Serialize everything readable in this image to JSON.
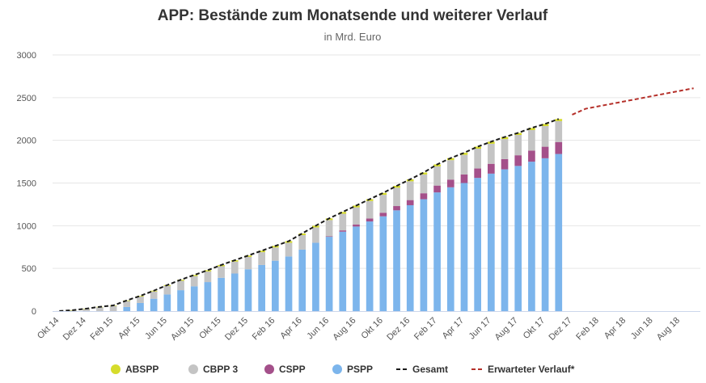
{
  "chart_data": {
    "type": "bar",
    "title": "APP: Bestände zum Monatsende und weiterer Verlauf",
    "subtitle": "in Mrd. Euro",
    "ylim": [
      0,
      3000
    ],
    "yticks": [
      "0",
      "500",
      "1000",
      "1500",
      "2000",
      "2500",
      "3000"
    ],
    "ytick_values": [
      0,
      500,
      1000,
      1500,
      2000,
      2500,
      3000
    ],
    "categories": [
      "Okt 14",
      "Nov 14",
      "Dez 14",
      "Jan 15",
      "Feb 15",
      "Mär 15",
      "Apr 15",
      "Mai 15",
      "Jun 15",
      "Jul 15",
      "Aug 15",
      "Sep 15",
      "Okt 15",
      "Nov 15",
      "Dez 15",
      "Jan 16",
      "Feb 16",
      "Mär 16",
      "Apr 16",
      "Mai 16",
      "Jun 16",
      "Jul 16",
      "Aug 16",
      "Sep 16",
      "Okt 16",
      "Nov 16",
      "Dez 16",
      "Jan 17",
      "Feb 17",
      "Mär 17",
      "Apr 17",
      "Mai 17",
      "Jun 17",
      "Jul 17",
      "Aug 17",
      "Sep 17",
      "Okt 17",
      "Nov 17",
      "Dez 17",
      "Jan 18",
      "Feb 18",
      "Mär 18",
      "Apr 18",
      "Mai 18",
      "Jun 18",
      "Jul 18",
      "Aug 18",
      "Sep 18"
    ],
    "x_tick_labels": [
      {
        "index": 0,
        "label": "Okt 14"
      },
      {
        "index": 2,
        "label": "Dez 14"
      },
      {
        "index": 4,
        "label": "Feb 15"
      },
      {
        "index": 6,
        "label": "Apr 15"
      },
      {
        "index": 8,
        "label": "Jun 15"
      },
      {
        "index": 10,
        "label": "Aug 15"
      },
      {
        "index": 12,
        "label": "Okt 15"
      },
      {
        "index": 14,
        "label": "Dez 15"
      },
      {
        "index": 16,
        "label": "Feb 16"
      },
      {
        "index": 18,
        "label": "Apr 16"
      },
      {
        "index": 20,
        "label": "Jun 16"
      },
      {
        "index": 22,
        "label": "Aug 16"
      },
      {
        "index": 24,
        "label": "Okt 16"
      },
      {
        "index": 26,
        "label": "Dez 16"
      },
      {
        "index": 28,
        "label": "Feb 17"
      },
      {
        "index": 30,
        "label": "Apr 17"
      },
      {
        "index": 32,
        "label": "Jun 17"
      },
      {
        "index": 34,
        "label": "Aug 17"
      },
      {
        "index": 36,
        "label": "Okt 17"
      },
      {
        "index": 38,
        "label": "Dez 17"
      },
      {
        "index": 40,
        "label": "Feb 18"
      },
      {
        "index": 42,
        "label": "Apr 18"
      },
      {
        "index": 44,
        "label": "Jun 18"
      },
      {
        "index": 46,
        "label": "Aug 18"
      }
    ],
    "series": [
      {
        "name": "PSPP",
        "kind": "stack",
        "color": "#7cb5ec",
        "values": [
          0,
          0,
          0,
          0,
          0,
          48,
          95,
          145,
          195,
          245,
          290,
          340,
          390,
          440,
          490,
          540,
          590,
          640,
          720,
          800,
          870,
          930,
          990,
          1050,
          1110,
          1180,
          1240,
          1310,
          1390,
          1450,
          1500,
          1560,
          1610,
          1660,
          1700,
          1750,
          1790,
          1840,
          null,
          null,
          null,
          null,
          null,
          null,
          null,
          null,
          null,
          null
        ]
      },
      {
        "name": "CSPP",
        "kind": "stack",
        "color": "#a4508a",
        "values": [
          0,
          0,
          0,
          0,
          0,
          0,
          0,
          0,
          0,
          0,
          0,
          0,
          0,
          0,
          0,
          0,
          0,
          0,
          0,
          0,
          6,
          15,
          25,
          34,
          42,
          50,
          60,
          70,
          80,
          90,
          100,
          110,
          115,
          120,
          125,
          130,
          135,
          140,
          null,
          null,
          null,
          null,
          null,
          null,
          null,
          null,
          null,
          null
        ]
      },
      {
        "name": "CBPP 3",
        "kind": "stack",
        "color": "#c4c4c4",
        "values": [
          1,
          10,
          27,
          45,
          60,
          70,
          75,
          85,
          100,
          110,
          120,
          125,
          135,
          140,
          145,
          150,
          155,
          160,
          170,
          180,
          190,
          195,
          200,
          205,
          210,
          215,
          220,
          220,
          225,
          228,
          230,
          232,
          235,
          235,
          238,
          240,
          242,
          245,
          null,
          null,
          null,
          null,
          null,
          null,
          null,
          null,
          null,
          null
        ]
      },
      {
        "name": "ABSPP",
        "kind": "stack",
        "color": "#d6dc2b",
        "values": [
          0,
          1,
          2,
          5,
          6,
          7,
          8,
          9,
          10,
          12,
          13,
          14,
          15,
          16,
          16,
          17,
          18,
          19,
          19,
          20,
          20,
          21,
          21,
          22,
          22,
          22,
          23,
          23,
          23,
          24,
          24,
          24,
          24,
          24,
          24,
          25,
          25,
          25,
          null,
          null,
          null,
          null,
          null,
          null,
          null,
          null,
          null,
          null
        ]
      },
      {
        "name": "Gesamt",
        "kind": "line",
        "color": "#1a1a1a",
        "dash": "5,3",
        "values": [
          1,
          11,
          29,
          50,
          66,
          125,
          178,
          239,
          305,
          367,
          423,
          479,
          540,
          596,
          651,
          707,
          763,
          819,
          909,
          1000,
          1086,
          1161,
          1236,
          1311,
          1384,
          1467,
          1543,
          1623,
          1718,
          1792,
          1854,
          1926,
          1984,
          2039,
          2087,
          2145,
          2192,
          2250,
          null,
          null,
          null,
          null,
          null,
          null,
          null,
          null,
          null,
          null
        ]
      },
      {
        "name": "Erwarteter Verlauf*",
        "kind": "line",
        "color": "#b5302a",
        "dash": "5,3",
        "values": [
          null,
          null,
          null,
          null,
          null,
          null,
          null,
          null,
          null,
          null,
          null,
          null,
          null,
          null,
          null,
          null,
          null,
          null,
          null,
          null,
          null,
          null,
          null,
          null,
          null,
          null,
          null,
          null,
          null,
          null,
          null,
          null,
          null,
          null,
          null,
          null,
          null,
          null,
          2300,
          2370,
          2400,
          2430,
          2460,
          2490,
          2520,
          2550,
          2580,
          2610
        ]
      }
    ],
    "legend": {
      "position": "bottom",
      "items": [
        {
          "label": "ABSPP",
          "marker": "circle",
          "color": "#d6dc2b"
        },
        {
          "label": "CBPP 3",
          "marker": "circle",
          "color": "#c4c4c4"
        },
        {
          "label": "CSPP",
          "marker": "circle",
          "color": "#a4508a"
        },
        {
          "label": "PSPP",
          "marker": "circle",
          "color": "#7cb5ec"
        },
        {
          "label": "Gesamt",
          "marker": "dash",
          "color": "#1a1a1a"
        },
        {
          "label": "Erwarteter Verlauf*",
          "marker": "dash",
          "color": "#b5302a"
        }
      ]
    },
    "grid": true
  }
}
